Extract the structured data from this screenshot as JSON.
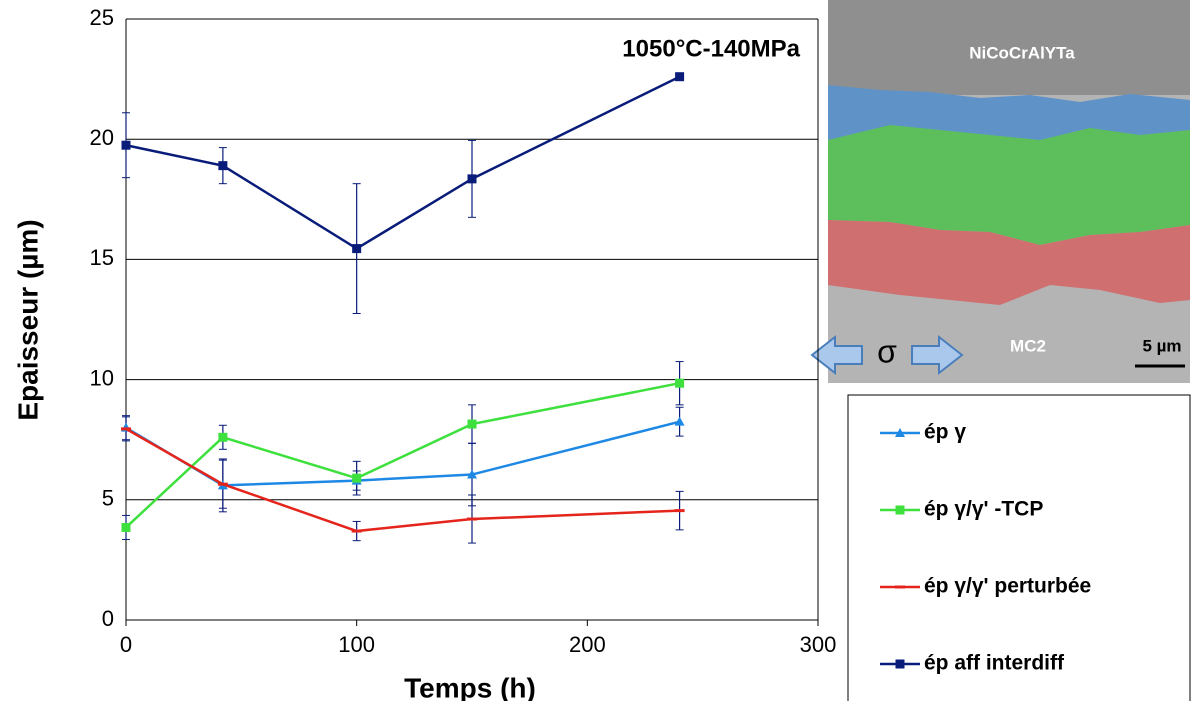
{
  "chart_data": {
    "type": "line",
    "annotation": "1050°C-140MPa",
    "xlabel": "Temps (h)",
    "ylabel": "Epaisseur (µm)",
    "xlim": [
      0,
      300
    ],
    "xticks": [
      0,
      100,
      200,
      300
    ],
    "ylim": [
      0,
      25
    ],
    "yticks": [
      0,
      5,
      10,
      15,
      20,
      25
    ],
    "grid": true,
    "legend": "right",
    "x": [
      0,
      42,
      100,
      150,
      240
    ],
    "series": [
      {
        "name": "ép γ",
        "color": "#1e88e5",
        "marker": "triangle",
        "values": [
          8.0,
          5.6,
          5.8,
          6.05,
          8.25
        ],
        "errors": [
          0.5,
          1.1,
          0.4,
          1.3,
          0.6
        ]
      },
      {
        "name": "ép γ/γ'  -TCP",
        "color": "#3ee03e",
        "marker": "square",
        "values": [
          3.85,
          7.6,
          5.9,
          8.15,
          9.85
        ],
        "errors": [
          0.5,
          0.5,
          0.7,
          0.8,
          0.9
        ]
      },
      {
        "name": "ép γ/γ'  perturbée",
        "color": "#e5241c",
        "marker": "dash",
        "values": [
          7.95,
          5.65,
          3.7,
          4.2,
          4.55
        ],
        "errors": [
          0.5,
          1.0,
          0.4,
          1.0,
          0.8
        ]
      },
      {
        "name": "ép aff interdiff",
        "color": "#0a1c7a",
        "marker": "square",
        "values": [
          19.75,
          18.9,
          15.45,
          18.35,
          22.6
        ],
        "errors": [
          1.35,
          0.75,
          2.7,
          1.6,
          null
        ]
      }
    ]
  },
  "micrograph": {
    "labels": [
      "NiCoCrAlYTa",
      "MC2",
      "5 µm",
      "σ"
    ]
  }
}
